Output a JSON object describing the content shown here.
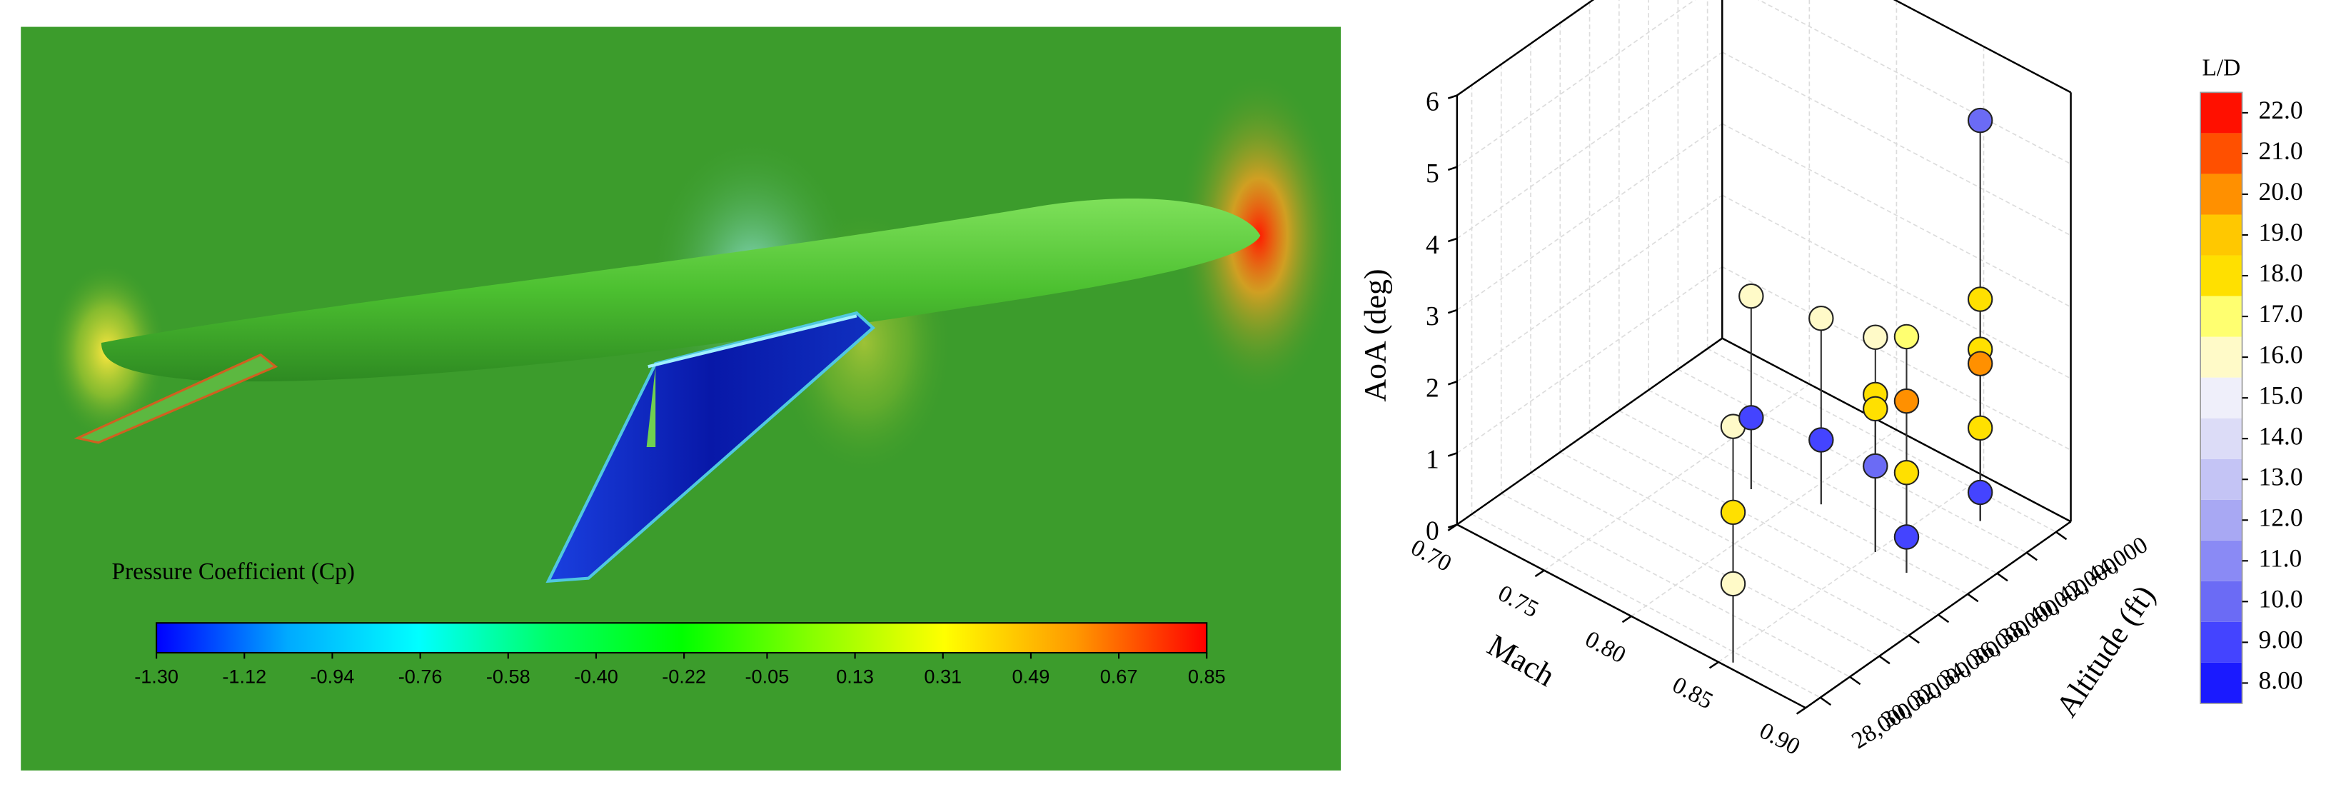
{
  "chart_data": [
    {
      "type": "colorbar",
      "title": "Pressure Coefficient (Cp)",
      "xlim": [
        -1.3,
        0.85
      ],
      "xticks": [
        {
          "value": -1.3,
          "label": "-1.30"
        },
        -1.12,
        -0.94,
        -0.76,
        -0.58,
        {
          "value": -0.4,
          "label": "-0.40"
        },
        -0.22,
        -0.05,
        0.13,
        0.31,
        0.49,
        0.67,
        0.85
      ],
      "colors": [
        "#0000ff",
        "#00aaff",
        "#00ffff",
        "#00ff66",
        "#00ff00",
        "#88ff00",
        "#ffff00",
        "#ff9900",
        "#ff0000"
      ]
    },
    {
      "type": "scatter3d",
      "xlabel": "Mach",
      "ylabel": "Altitude (ft)",
      "zlabel": "AoA (deg)",
      "xlim": [
        0.7,
        0.9
      ],
      "xticks": [
        {
          "value": 0.7,
          "label": "0.70"
        },
        0.75,
        {
          "value": 0.8,
          "label": "0.80"
        },
        0.85,
        {
          "value": 0.9,
          "label": "0.90"
        }
      ],
      "ylim": [
        27000,
        45000
      ],
      "yticks": [
        {
          "value": 28000,
          "label": "28,000"
        },
        {
          "value": 30000,
          "label": "30,000"
        },
        {
          "value": 32000,
          "label": "32,000"
        },
        {
          "value": 34000,
          "label": "34,000"
        },
        {
          "value": 36000,
          "label": "36,000"
        },
        {
          "value": 38000,
          "label": "38,000"
        },
        {
          "value": 40000,
          "label": "40,000"
        },
        {
          "value": 42000,
          "label": "42,000"
        },
        {
          "value": 44000,
          "label": "44,000"
        }
      ],
      "zlim": [
        0,
        6
      ],
      "zticks": [
        0,
        1,
        2,
        3,
        4,
        5,
        6
      ],
      "grid": true,
      "x": [
        0.855,
        0.855,
        0.855,
        0.78,
        0.78,
        0.81,
        0.81,
        0.85,
        0.85,
        0.85,
        0.85,
        0.87,
        0.87,
        0.87,
        0.87,
        0.87,
        0.87,
        0.87,
        0.87,
        0.87,
        0.87
      ],
      "y": [
        27400,
        27400,
        27400,
        37500,
        37500,
        38700,
        38700,
        37650,
        37650,
        37650,
        37650,
        37400,
        37400,
        37400,
        37400,
        42400,
        42400,
        42400,
        42400,
        42400,
        42400
      ],
      "z": [
        1.1,
        2.1,
        3.3,
        2.7,
        1.0,
        2.6,
        0.9,
        3.0,
        2.2,
        2.0,
        1.2,
        3.3,
        2.4,
        1.4,
        0.5,
        5.6,
        3.1,
        2.4,
        2.2,
        1.3,
        0.4
      ],
      "c": [
        16,
        18,
        16,
        16,
        9,
        16,
        9,
        16,
        18,
        18,
        10,
        17,
        20,
        18,
        9,
        10,
        18,
        18,
        20,
        18,
        9
      ],
      "colorbar": {
        "title": "L/D",
        "lim": [
          7.5,
          22.5
        ],
        "ticks": [
          {
            "value": 8,
            "label": "8.00"
          },
          {
            "value": 9,
            "label": "9.00"
          },
          {
            "value": 10,
            "label": "10.0"
          },
          {
            "value": 11,
            "label": "11.0"
          },
          {
            "value": 12,
            "label": "12.0"
          },
          {
            "value": 13,
            "label": "13.0"
          },
          {
            "value": 14,
            "label": "14.0"
          },
          {
            "value": 15,
            "label": "15.0"
          },
          {
            "value": 16,
            "label": "16.0"
          },
          {
            "value": 17,
            "label": "17.0"
          },
          {
            "value": 18,
            "label": "18.0"
          },
          {
            "value": 19,
            "label": "19.0"
          },
          {
            "value": 20,
            "label": "20.0"
          },
          {
            "value": 21,
            "label": "21.0"
          },
          {
            "value": 22,
            "label": "22.0"
          }
        ],
        "colors": [
          "#1a1aff",
          "#4444ff",
          "#6b6bf5",
          "#8a8af5",
          "#a8a8f3",
          "#c4c4f5",
          "#dcdcf7",
          "#efeffa",
          "#fffac8",
          "#ffff70",
          "#ffe000",
          "#ffc800",
          "#ff9000",
          "#ff5000",
          "#ff1000"
        ]
      }
    }
  ]
}
